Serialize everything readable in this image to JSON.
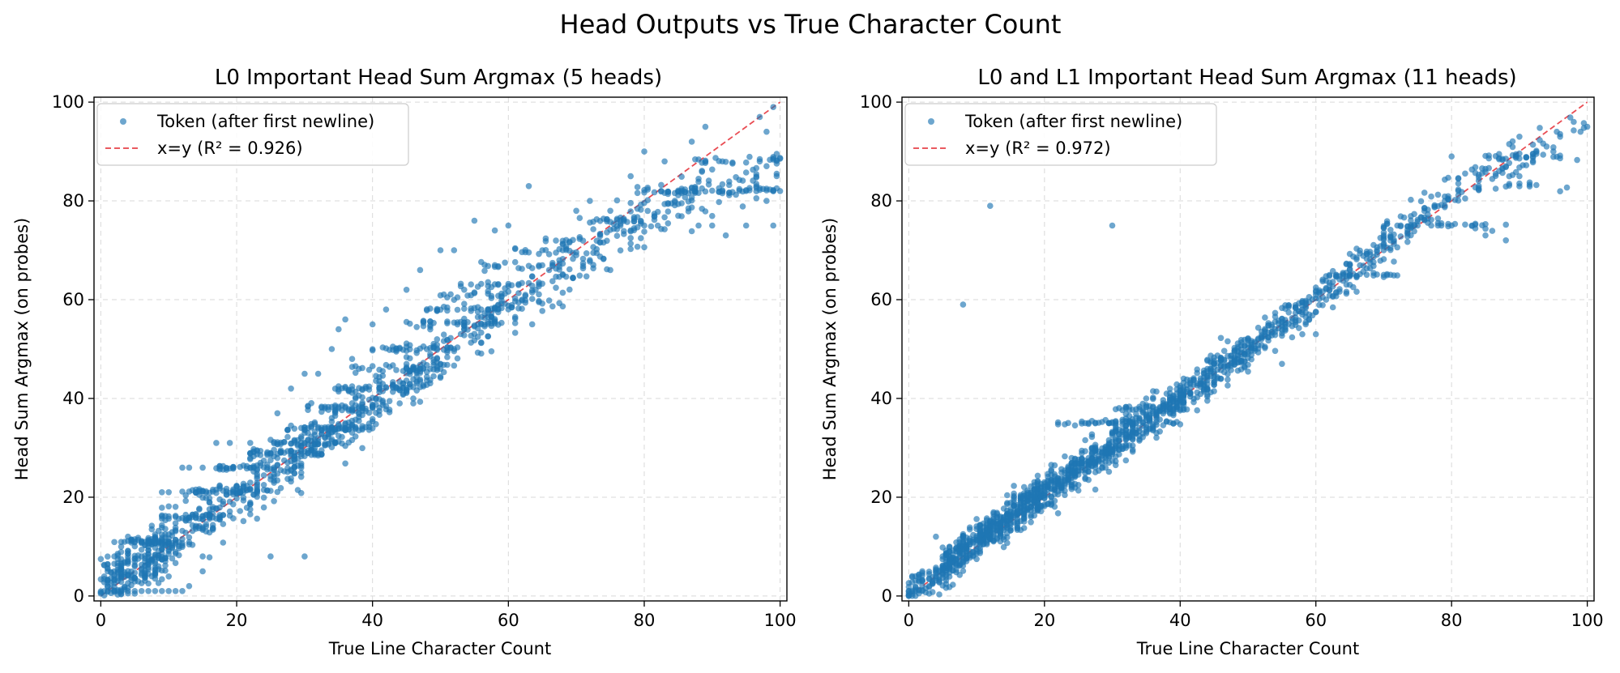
{
  "figure_title": "Head Outputs vs True Character Count",
  "chart_data": [
    {
      "type": "scatter",
      "title": "L0 Important Head Sum Argmax (5 heads)",
      "xlabel": "True Line Character Count",
      "ylabel": "Head Sum Argmax (on probes)",
      "xlim": [
        -1,
        101
      ],
      "ylim": [
        -1,
        101
      ],
      "xticks": [
        "0",
        "20",
        "40",
        "60",
        "80",
        "100"
      ],
      "yticks": [
        "0",
        "20",
        "40",
        "60",
        "80",
        "100"
      ],
      "grid": true,
      "legend_position": "top-left",
      "legend": [
        "Token (after first newline)",
        "x=y (R² = 0.926)"
      ],
      "point_color": "#1f77b4",
      "line_color": "#e8434a",
      "noise": 2.8,
      "points": [
        [
          1,
          1
        ],
        [
          2,
          1
        ],
        [
          3,
          1
        ],
        [
          4,
          1
        ],
        [
          5,
          1
        ],
        [
          6,
          1
        ],
        [
          7,
          1
        ],
        [
          8,
          1
        ],
        [
          9,
          1
        ],
        [
          10,
          1
        ],
        [
          11,
          1
        ],
        [
          12,
          1
        ],
        [
          13,
          2
        ],
        [
          2,
          5
        ],
        [
          3,
          4
        ],
        [
          1,
          5
        ],
        [
          4,
          7
        ],
        [
          5,
          6
        ],
        [
          6,
          8
        ],
        [
          2,
          8
        ],
        [
          3,
          10
        ],
        [
          5,
          11
        ],
        [
          4,
          12
        ],
        [
          6,
          11
        ],
        [
          7,
          10
        ],
        [
          9,
          21
        ],
        [
          10,
          21
        ],
        [
          11,
          16
        ],
        [
          12,
          26
        ],
        [
          13,
          26
        ],
        [
          14,
          21
        ],
        [
          15,
          26
        ],
        [
          17,
          31
        ],
        [
          19,
          31
        ],
        [
          15,
          5
        ],
        [
          25,
          8
        ],
        [
          30,
          8
        ],
        [
          22,
          31
        ],
        [
          26,
          37
        ],
        [
          28,
          42
        ],
        [
          30,
          45
        ],
        [
          32,
          45
        ],
        [
          34,
          50
        ],
        [
          35,
          54
        ],
        [
          36,
          56
        ],
        [
          37,
          48
        ],
        [
          40,
          55
        ],
        [
          42,
          58
        ],
        [
          45,
          62
        ],
        [
          47,
          66
        ],
        [
          50,
          70
        ],
        [
          52,
          70
        ],
        [
          55,
          76
        ],
        [
          58,
          74
        ],
        [
          60,
          75
        ],
        [
          63,
          83
        ],
        [
          65,
          70
        ],
        [
          70,
          78
        ],
        [
          72,
          80
        ],
        [
          75,
          78
        ],
        [
          78,
          85
        ],
        [
          80,
          90
        ],
        [
          83,
          88
        ],
        [
          87,
          92
        ],
        [
          89,
          95
        ],
        [
          97,
          97
        ],
        [
          99,
          99
        ],
        [
          98,
          94
        ],
        [
          44,
          39
        ],
        [
          46,
          39
        ],
        [
          50,
          47
        ],
        [
          52,
          50
        ],
        [
          56,
          58
        ],
        [
          58,
          58
        ],
        [
          62,
          60
        ],
        [
          64,
          62
        ],
        [
          66,
          66
        ],
        [
          70,
          69
        ],
        [
          72,
          68
        ],
        [
          75,
          66
        ],
        [
          78,
          74
        ],
        [
          80,
          75
        ],
        [
          82,
          75
        ],
        [
          85,
          77
        ],
        [
          88,
          75
        ],
        [
          90,
          75
        ],
        [
          92,
          73
        ],
        [
          95,
          75
        ],
        [
          98,
          80
        ],
        [
          100,
          82
        ],
        [
          99,
          75
        ],
        [
          97,
          88
        ]
      ],
      "bands": [
        [
          3,
          13,
          11,
          40
        ],
        [
          9,
          18,
          16,
          40
        ],
        [
          12,
          26,
          21,
          45
        ],
        [
          17,
          30,
          26,
          40
        ],
        [
          21,
          33,
          29,
          40
        ],
        [
          24,
          35,
          31,
          35
        ],
        [
          27,
          40,
          34,
          40
        ],
        [
          30,
          43,
          38,
          35
        ],
        [
          34,
          48,
          42,
          40
        ],
        [
          37,
          50,
          46,
          30
        ],
        [
          40,
          52,
          50,
          30
        ],
        [
          44,
          58,
          55,
          25
        ],
        [
          48,
          60,
          58,
          25
        ],
        [
          50,
          63,
          61,
          20
        ],
        [
          53,
          66,
          63,
          20
        ],
        [
          56,
          68,
          67,
          20
        ],
        [
          60,
          70,
          70,
          15
        ],
        [
          65,
          75,
          72,
          15
        ],
        [
          70,
          80,
          76,
          20
        ],
        [
          78,
          88,
          82,
          25
        ],
        [
          85,
          100,
          82,
          30
        ],
        [
          87,
          100,
          88,
          15
        ]
      ],
      "cloud": [
        [
          5,
          6,
          250
        ],
        [
          15,
          15,
          90
        ],
        [
          25,
          24,
          110
        ],
        [
          35,
          34,
          110
        ],
        [
          45,
          44,
          90
        ],
        [
          55,
          54,
          80
        ],
        [
          65,
          62,
          60
        ],
        [
          75,
          72,
          60
        ],
        [
          85,
          80,
          50
        ],
        [
          95,
          84,
          40
        ]
      ]
    },
    {
      "type": "scatter",
      "title": "L0 and L1 Important Head Sum Argmax (11 heads)",
      "xlabel": "True Line Character Count",
      "ylabel": "Head Sum Argmax (on probes)",
      "xlim": [
        -1,
        101
      ],
      "ylim": [
        -1,
        101
      ],
      "xticks": [
        "0",
        "20",
        "40",
        "60",
        "80",
        "100"
      ],
      "yticks": [
        "0",
        "20",
        "40",
        "60",
        "80",
        "100"
      ],
      "grid": true,
      "legend_position": "top-left",
      "legend": [
        "Token (after first newline)",
        "x=y (R² = 0.972)"
      ],
      "point_color": "#1f77b4",
      "line_color": "#e8434a",
      "noise": 1.8,
      "points": [
        [
          8,
          59
        ],
        [
          12,
          79
        ],
        [
          30,
          75
        ],
        [
          1,
          1
        ],
        [
          2,
          3
        ],
        [
          3,
          2
        ],
        [
          1,
          4
        ],
        [
          2,
          5
        ],
        [
          4,
          12
        ],
        [
          5,
          8
        ],
        [
          98,
          96
        ],
        [
          99,
          94
        ],
        [
          100,
          95
        ],
        [
          96,
          93
        ],
        [
          90,
          93
        ],
        [
          92,
          89
        ],
        [
          95,
          90
        ],
        [
          80,
          89
        ],
        [
          62,
          65
        ],
        [
          65,
          67
        ],
        [
          70,
          70
        ],
        [
          72,
          75
        ],
        [
          75,
          75
        ],
        [
          78,
          75
        ],
        [
          80,
          75
        ],
        [
          83,
          75
        ],
        [
          85,
          73
        ],
        [
          88,
          72
        ],
        [
          90,
          85
        ],
        [
          58,
          53
        ],
        [
          60,
          53
        ],
        [
          55,
          47
        ],
        [
          50,
          49
        ],
        [
          45,
          47
        ],
        [
          40,
          40
        ],
        [
          35,
          40
        ],
        [
          30,
          33
        ]
      ],
      "bands": [
        [
          22,
          40,
          35,
          40
        ],
        [
          30,
          42,
          38,
          25
        ],
        [
          70,
          88,
          75,
          25
        ],
        [
          85,
          100,
          89,
          20
        ],
        [
          62,
          75,
          65,
          20
        ],
        [
          88,
          98,
          83,
          10
        ]
      ],
      "cloud": [
        [
          4,
          4,
          160
        ],
        [
          10,
          11,
          200
        ],
        [
          15,
          16,
          180
        ],
        [
          20,
          21,
          150
        ],
        [
          25,
          26,
          130
        ],
        [
          30,
          30,
          130
        ],
        [
          35,
          36,
          110
        ],
        [
          40,
          40,
          100
        ],
        [
          45,
          45,
          90
        ],
        [
          50,
          50,
          80
        ],
        [
          55,
          55,
          70
        ],
        [
          60,
          60,
          60
        ],
        [
          65,
          65,
          45
        ],
        [
          70,
          71,
          40
        ],
        [
          75,
          77,
          40
        ],
        [
          80,
          81,
          30
        ],
        [
          85,
          85,
          25
        ],
        [
          90,
          88,
          20
        ],
        [
          95,
          92,
          15
        ]
      ]
    }
  ]
}
